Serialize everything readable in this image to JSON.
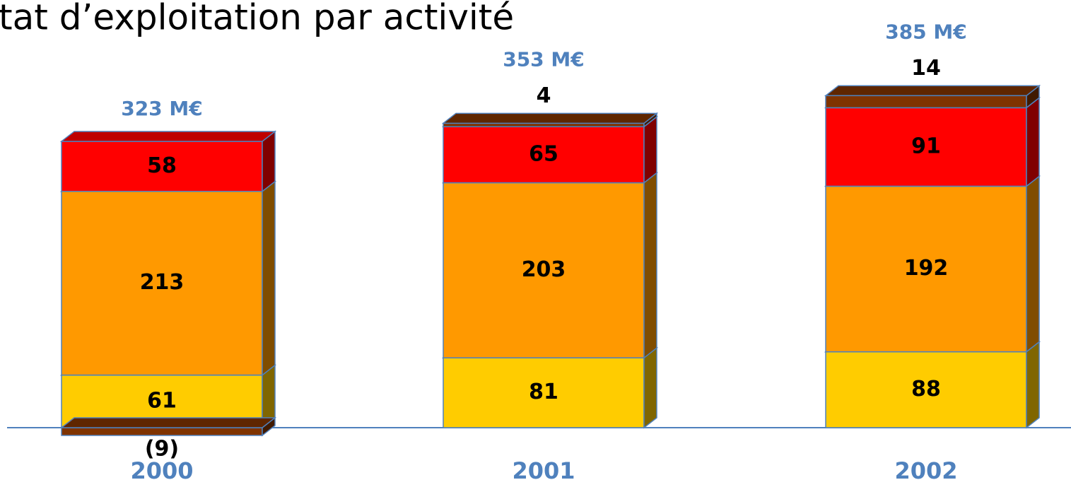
{
  "chart_data": {
    "type": "stacked-bar-3d",
    "title": "tat d’exploitation par activité",
    "categories": [
      "2000",
      "2001",
      "2002"
    ],
    "series": [
      {
        "color": "#ffcc00",
        "values": [
          61,
          81,
          88
        ]
      },
      {
        "color": "#ff9900",
        "values": [
          213,
          203,
          192
        ]
      },
      {
        "color": "#ff0000",
        "values": [
          58,
          65,
          91
        ]
      },
      {
        "color": "#7f3300",
        "values": [
          -9,
          4,
          14
        ],
        "value_labels": [
          "(9)",
          "4",
          "14"
        ]
      }
    ],
    "totals": {
      "values": [
        323,
        353,
        385
      ],
      "value_labels": [
        "323 M€",
        "353 M€",
        "385 M€"
      ]
    }
  }
}
